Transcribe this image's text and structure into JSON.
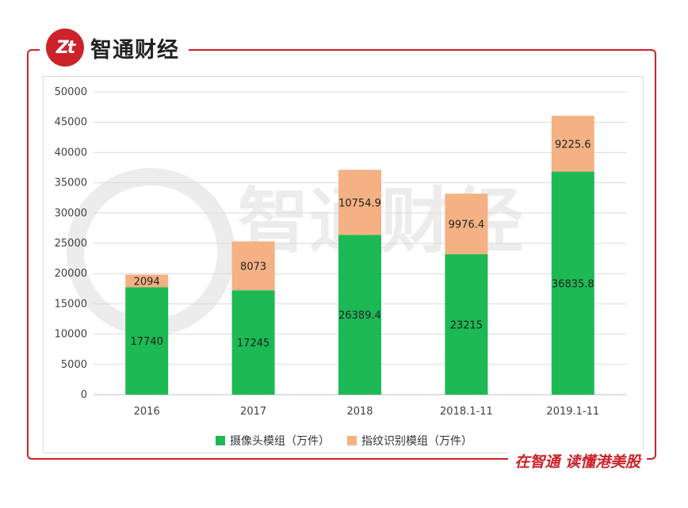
{
  "brand": {
    "logo_text": "Zt",
    "name": "智通财经"
  },
  "footer": {
    "slogan": "在智通  读懂港美股"
  },
  "watermark": {
    "text": "智通财经"
  },
  "chart_data": {
    "type": "bar",
    "stacked": true,
    "categories": [
      "2016",
      "2017",
      "2018",
      "2018.1-11",
      "2019.1-11"
    ],
    "series": [
      {
        "name": "摄像头模组（万件）",
        "values": [
          17740,
          17245,
          26389.4,
          23215,
          36835.8
        ],
        "labels": [
          "17740",
          "17245",
          "26389.4",
          "23215",
          "36835.8"
        ],
        "color": "#1db954"
      },
      {
        "name": "指纹识别模组（万件）",
        "values": [
          2094,
          8073,
          10754.9,
          9976.4,
          9225.6
        ],
        "labels": [
          "2094",
          "8073",
          "10754.9",
          "9976.4",
          "9225.6"
        ],
        "color": "#f4b183"
      }
    ],
    "yticks": [
      "0",
      "5000",
      "10000",
      "15000",
      "20000",
      "25000",
      "30000",
      "35000",
      "40000",
      "45000",
      "50000"
    ],
    "ylim": [
      0,
      50000
    ],
    "grid": true,
    "legend_position": "bottom",
    "title": "",
    "xlabel": "",
    "ylabel": ""
  }
}
